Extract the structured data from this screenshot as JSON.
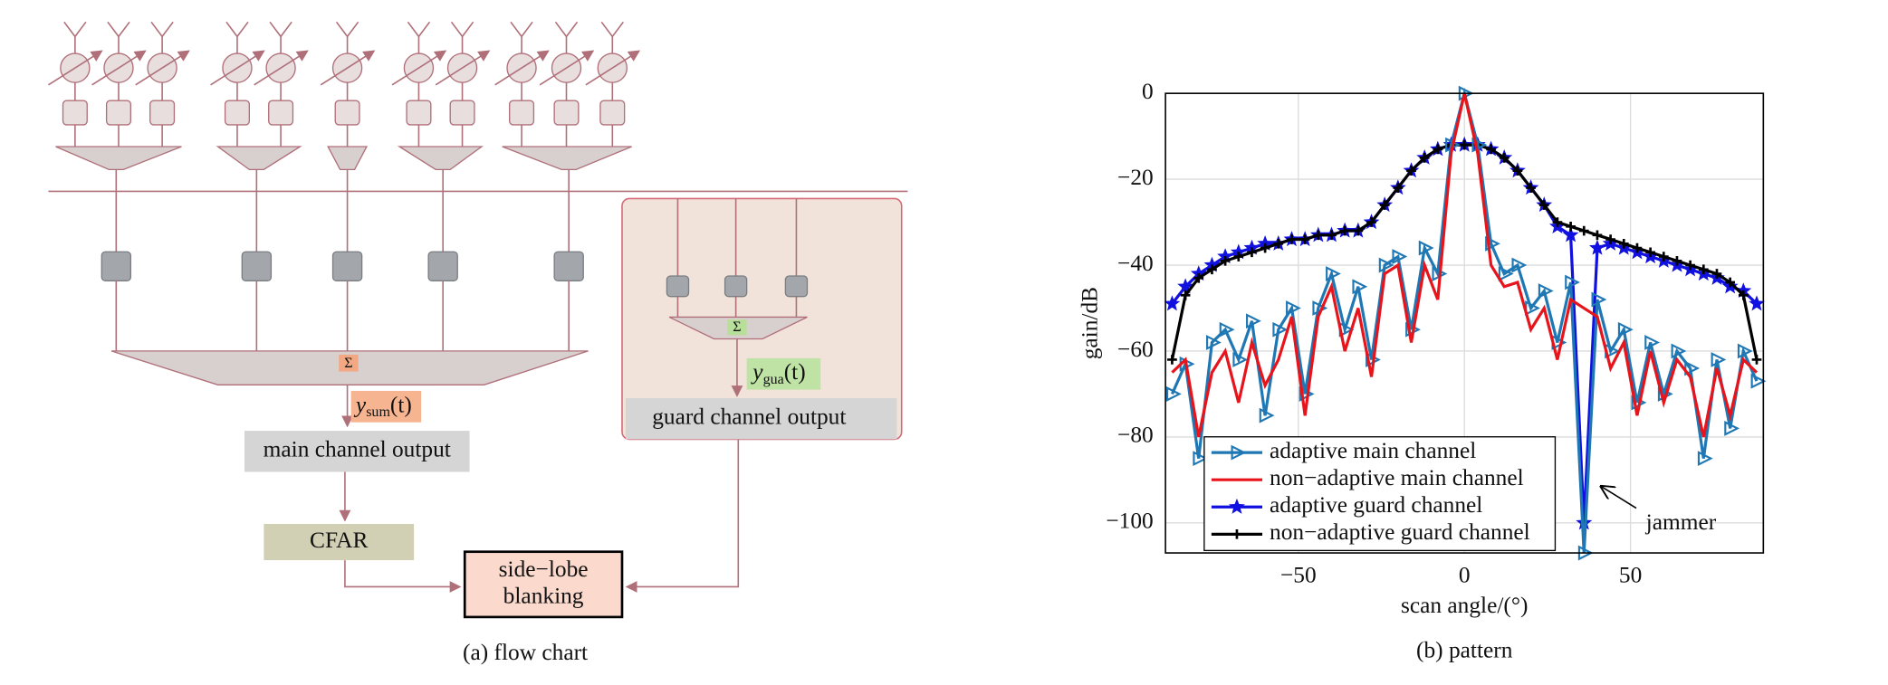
{
  "diagram": {
    "caption": "(a) flow chart",
    "sum_symbol_main": "Σ",
    "sum_symbol_guard": "Σ",
    "y_sum": {
      "main": "y",
      "sub": "sum",
      "arg": "(t)"
    },
    "y_gua": {
      "main": "y",
      "sub": "gua",
      "arg": "(t)"
    },
    "main_output": "main channel output",
    "guard_output": "guard channel output",
    "cfar": "CFAR",
    "blanking": [
      "side−lobe",
      "blanking"
    ]
  },
  "chart_data": {
    "type": "line",
    "caption": "(b) pattern",
    "xlabel": "scan angle/(°)",
    "ylabel": "gain/dB",
    "annotation": "jammer",
    "xlim": [
      -90,
      90
    ],
    "ylim": [
      -107,
      0
    ],
    "xticks": [
      {
        "value": -50,
        "label": "−50"
      },
      0,
      50
    ],
    "yticks": [
      0,
      {
        "value": -20,
        "label": "−20"
      },
      {
        "value": -40,
        "label": "−40"
      },
      {
        "value": -60,
        "label": "−60"
      },
      {
        "value": -80,
        "label": "−80"
      },
      {
        "value": -100,
        "label": "−100"
      }
    ],
    "grid": true,
    "legend": "lower left",
    "x": [
      -88,
      -84,
      -80,
      -76,
      -72,
      -68,
      -64,
      -60,
      -56,
      -52,
      -48,
      -44,
      -40,
      -36,
      -32,
      -28,
      -24,
      -20,
      -16,
      -12,
      -8,
      -4,
      0,
      4,
      8,
      12,
      16,
      20,
      24,
      28,
      32,
      36,
      40,
      44,
      48,
      52,
      56,
      60,
      64,
      68,
      72,
      76,
      80,
      84,
      88
    ],
    "series": [
      {
        "name": "adaptive main channel",
        "color": "#1f77b4",
        "marker": "triangle",
        "values": [
          -70,
          -63,
          -85,
          -58,
          -55,
          -62,
          -53,
          -75,
          -55,
          -50,
          -70,
          -50,
          -42,
          -55,
          -45,
          -62,
          -40,
          -38,
          -55,
          -36,
          -42,
          -12,
          0,
          -12,
          -35,
          -42,
          -40,
          -50,
          -46,
          -58,
          -44,
          -107,
          -48,
          -60,
          -55,
          -72,
          -58,
          -70,
          -60,
          -64,
          -85,
          -62,
          -78,
          -60,
          -67
        ]
      },
      {
        "name": "non−adaptive main channel",
        "color": "#e8141c",
        "marker": "none",
        "values": [
          -65,
          -62,
          -80,
          -65,
          -60,
          -72,
          -58,
          -68,
          -62,
          -52,
          -75,
          -52,
          -45,
          -60,
          -50,
          -66,
          -42,
          -40,
          -58,
          -40,
          -48,
          -14,
          0,
          -14,
          -40,
          -45,
          -44,
          -55,
          -50,
          -62,
          -48,
          -50,
          -52,
          -64,
          -58,
          -75,
          -60,
          -72,
          -62,
          -66,
          -80,
          -64,
          -75,
          -62,
          -65
        ]
      },
      {
        "name": "adaptive guard channel",
        "color": "#1010e0",
        "marker": "star",
        "values": [
          -49,
          -45,
          -42,
          -40,
          -38,
          -37,
          -36,
          -35,
          -35,
          -34,
          -34,
          -33,
          -33,
          -32,
          -32,
          -30,
          -26,
          -22,
          -18,
          -15,
          -13,
          -12,
          -12,
          -12,
          -13,
          -15,
          -18,
          -22,
          -26,
          -31,
          -33,
          -100,
          -36,
          -35,
          -36,
          -37,
          -38,
          -39,
          -40,
          -41,
          -42,
          -43,
          -45,
          -46,
          -49
        ]
      },
      {
        "name": "non−adaptive guard channel",
        "color": "#000000",
        "marker": "plus",
        "values": [
          -62,
          -47,
          -43,
          -41,
          -39,
          -38,
          -37,
          -36,
          -35,
          -34,
          -34,
          -33,
          -33,
          -32,
          -32,
          -30,
          -26,
          -22,
          -18,
          -15,
          -13,
          -12,
          -12,
          -12,
          -13,
          -15,
          -18,
          -22,
          -26,
          -30,
          -31,
          -32,
          -33,
          -34,
          -35,
          -36,
          -37,
          -38,
          -39,
          -40,
          -41,
          -42,
          -44,
          -47,
          -62
        ]
      }
    ]
  }
}
